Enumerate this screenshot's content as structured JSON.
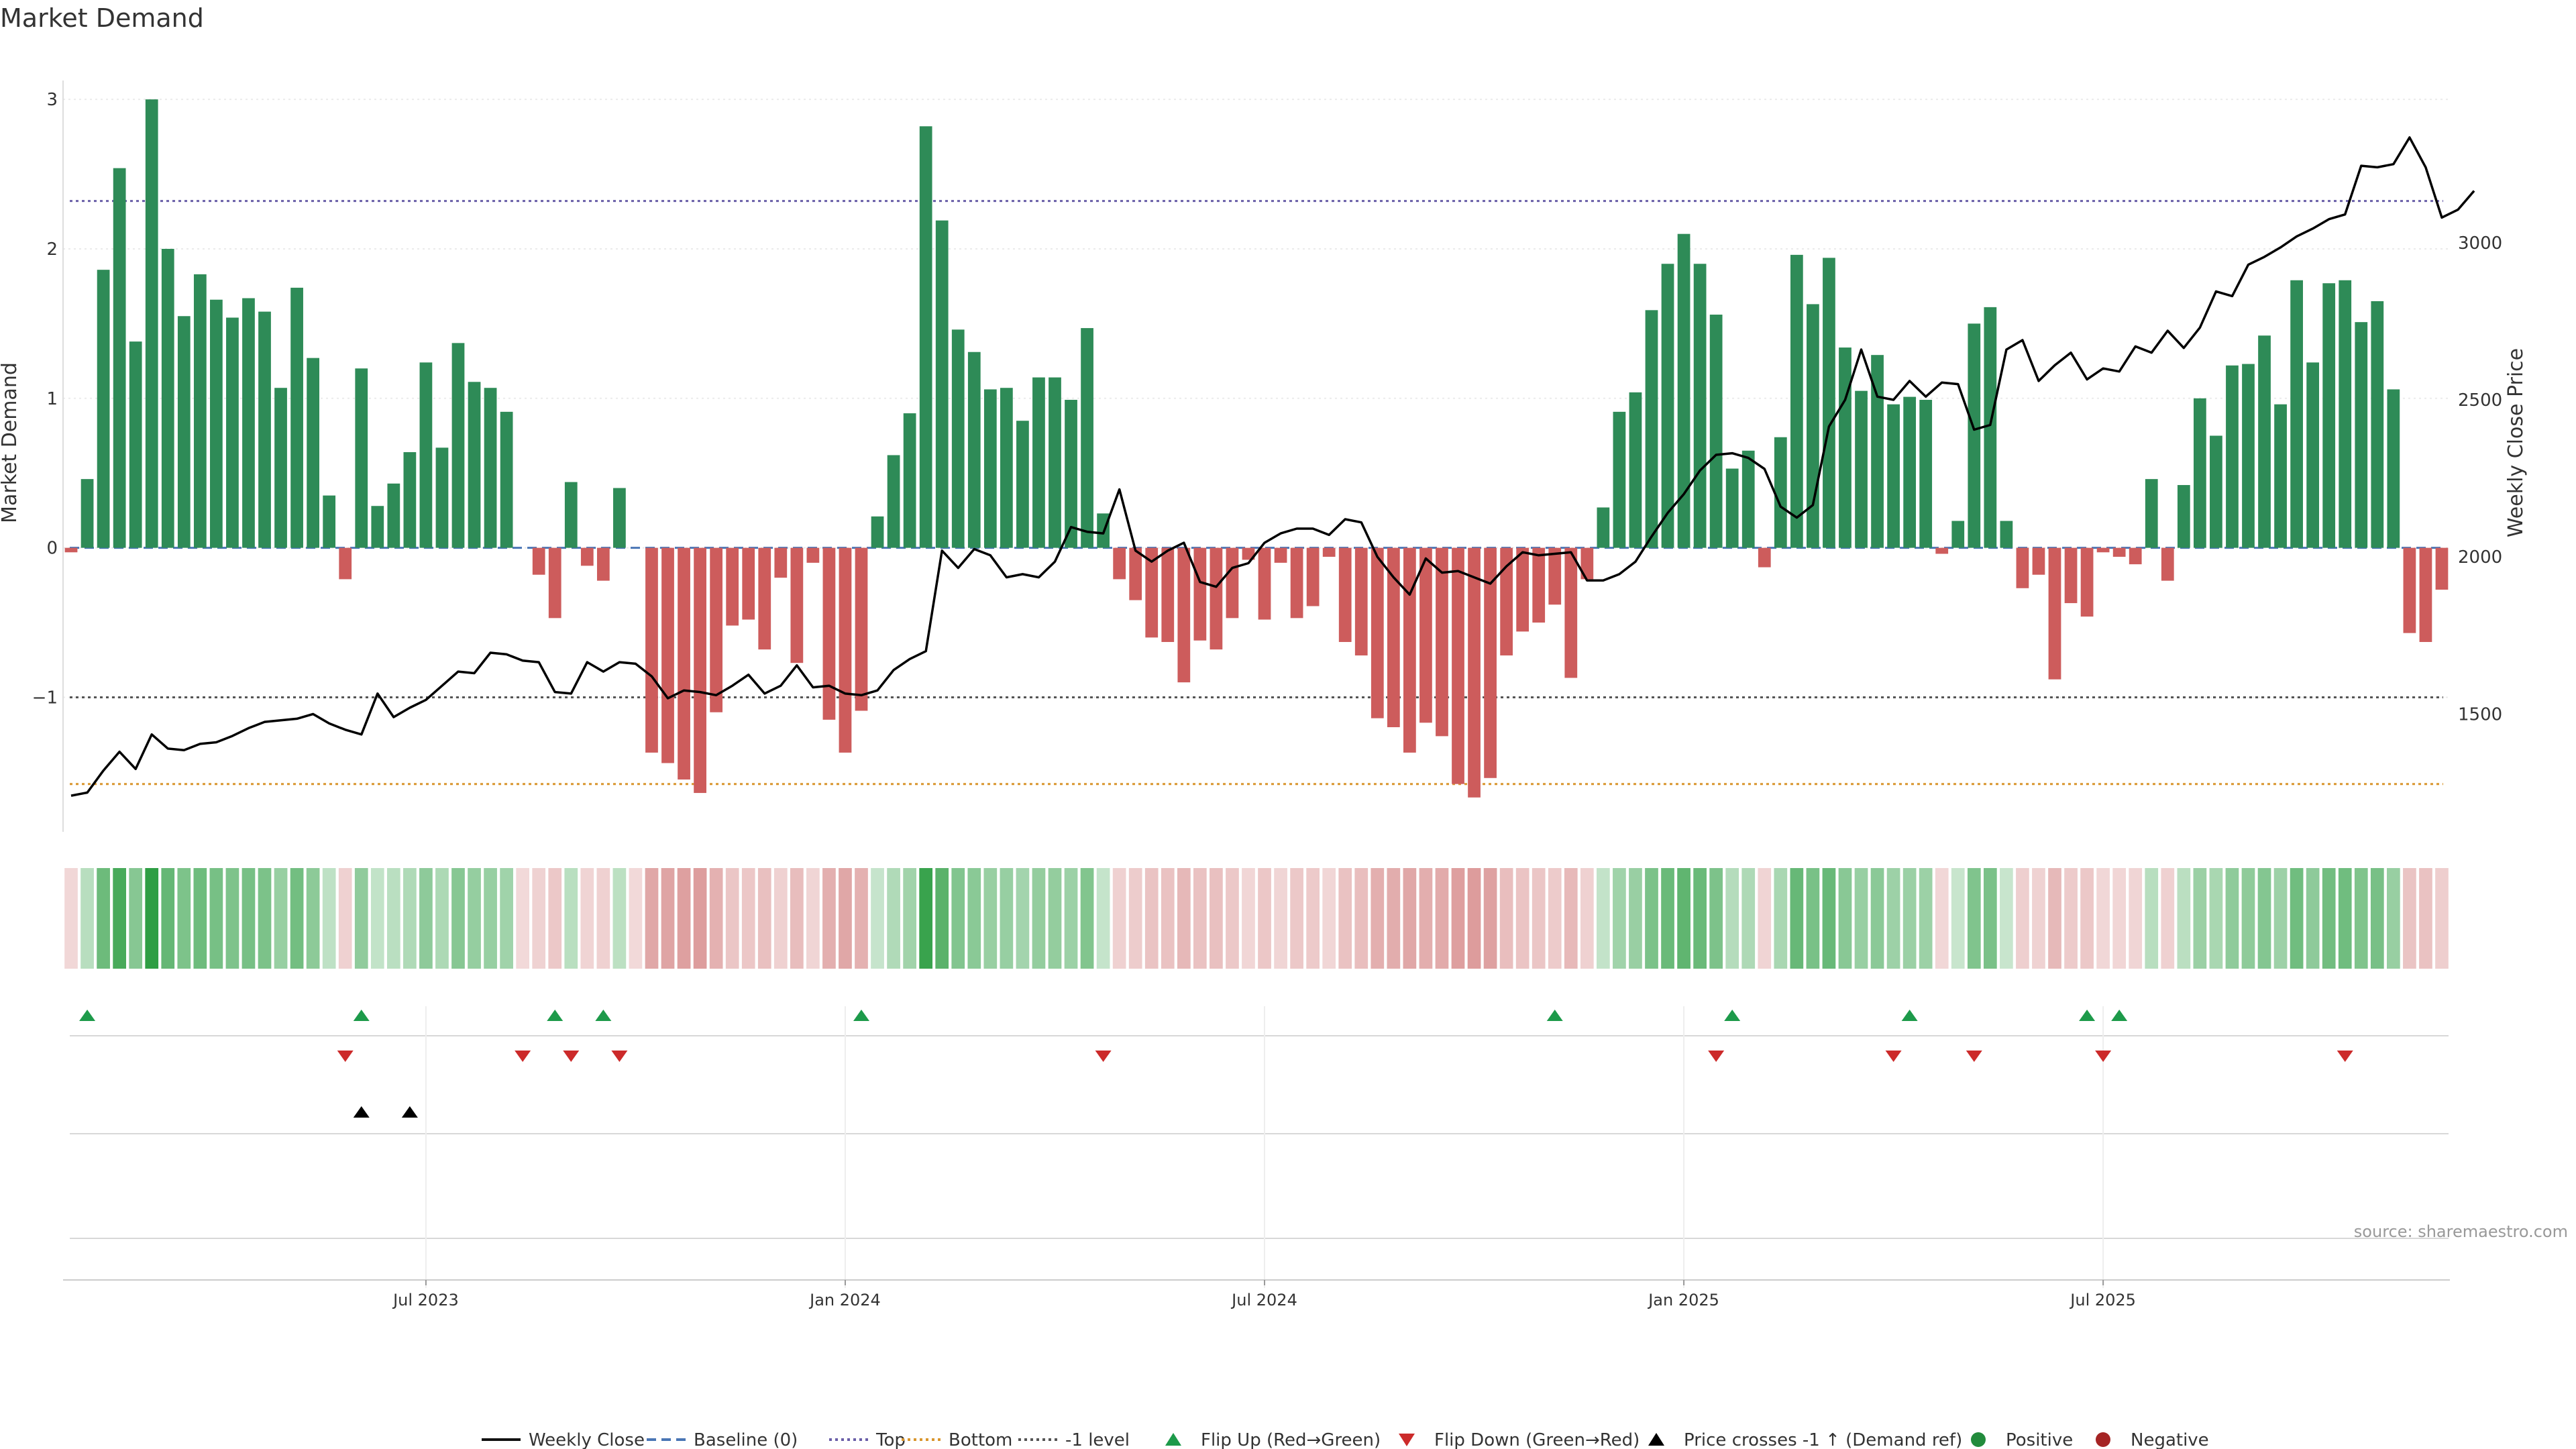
{
  "chart_data": {
    "type": "bar",
    "title": "Market Demand",
    "ylabel": "Market Demand",
    "y2label": "Weekly Close Price",
    "ylim": [
      -1.9,
      3.05
    ],
    "y2lim": [
      1125,
      3480
    ],
    "yticks": [
      {
        "v": 3,
        "label": "3"
      },
      {
        "v": 2,
        "label": "2"
      },
      {
        "v": 1,
        "label": "1"
      },
      {
        "v": 0,
        "label": "0"
      },
      {
        "v": -1,
        "label": "−1"
      }
    ],
    "y2ticks": [
      {
        "v": 3000,
        "label": "3000"
      },
      {
        "v": 2500,
        "label": "2500"
      },
      {
        "v": 2000,
        "label": "2000"
      },
      {
        "v": 1500,
        "label": "1500"
      }
    ],
    "xticks": [
      {
        "index": 22,
        "label": "Jul 2023"
      },
      {
        "index": 48,
        "label": "Jan 2024"
      },
      {
        "index": 74,
        "label": "Jul 2024"
      },
      {
        "index": 100,
        "label": "Jan 2025"
      },
      {
        "index": 126,
        "label": "Jul 2025"
      }
    ],
    "reference_lines": {
      "top": 2.32,
      "minus_one": -1.0,
      "bottom": -1.58
    },
    "demand": [
      -0.03,
      0.46,
      1.86,
      2.54,
      1.38,
      3.0,
      2.0,
      1.55,
      1.83,
      1.66,
      1.54,
      1.67,
      1.58,
      1.07,
      1.74,
      1.27,
      0.35,
      -0.21,
      1.2,
      0.28,
      0.43,
      0.64,
      1.24,
      0.67,
      1.37,
      1.11,
      1.07,
      0.91,
      0,
      -0.18,
      -0.47,
      0.44,
      -0.12,
      -0.22,
      0.4,
      0,
      -1.37,
      -1.44,
      -1.55,
      -1.64,
      -1.1,
      -0.52,
      -0.48,
      -0.68,
      -0.2,
      -0.77,
      -0.1,
      -1.15,
      -1.37,
      -1.09,
      0.21,
      0.62,
      0.9,
      2.82,
      2.19,
      1.46,
      1.31,
      1.06,
      1.07,
      0.85,
      1.14,
      1.14,
      0.99,
      1.47,
      0.23,
      -0.21,
      -0.35,
      -0.6,
      -0.63,
      -0.9,
      -0.62,
      -0.68,
      -0.47,
      -0.08,
      -0.48,
      -0.1,
      -0.47,
      -0.39,
      -0.06,
      -0.63,
      -0.72,
      -1.14,
      -1.2,
      -1.37,
      -1.17,
      -1.26,
      -1.58,
      -1.67,
      -1.54,
      -0.72,
      -0.56,
      -0.5,
      -0.38,
      -0.87,
      -0.21,
      0.27,
      0.91,
      1.04,
      1.59,
      1.9,
      2.1,
      1.9,
      1.56,
      0.53,
      0.65,
      -0.13,
      0.74,
      1.96,
      1.63,
      1.94,
      1.34,
      1.05,
      1.29,
      0.96,
      1.01,
      0.99,
      -0.04,
      0.18,
      1.5,
      1.61,
      0.18,
      -0.27,
      -0.18,
      -0.88,
      -0.37,
      -0.46,
      -0.03,
      -0.06,
      -0.11,
      0.46,
      -0.22,
      0.42,
      1.0,
      0.75,
      1.22,
      1.23,
      1.42,
      0.96,
      1.79,
      1.24,
      1.77,
      1.79,
      1.51,
      1.65,
      1.06,
      -0.57,
      -0.63,
      -0.28
    ],
    "weekly_close": [
      1240,
      1250,
      1320,
      1380,
      1325,
      1435,
      1390,
      1385,
      1405,
      1410,
      1430,
      1455,
      1475,
      1480,
      1485,
      1500,
      1470,
      1450,
      1435,
      1565,
      1490,
      1520,
      1545,
      1590,
      1635,
      1630,
      1695,
      1690,
      1670,
      1665,
      1570,
      1565,
      1665,
      1635,
      1665,
      1660,
      1620,
      1550,
      1575,
      1570,
      1560,
      1590,
      1625,
      1565,
      1590,
      1655,
      1585,
      1590,
      1565,
      1560,
      1575,
      1640,
      1675,
      1700,
      2020,
      1965,
      2025,
      2005,
      1935,
      1945,
      1935,
      1985,
      2095,
      2080,
      2075,
      2215,
      2020,
      1985,
      2020,
      2045,
      1920,
      1905,
      1965,
      1980,
      2045,
      2075,
      2090,
      2090,
      2070,
      2120,
      2110,
      2000,
      1935,
      1880,
      1995,
      1950,
      1955,
      1935,
      1915,
      1970,
      2015,
      2005,
      2010,
      2015,
      1925,
      1925,
      1945,
      1985,
      2065,
      2140,
      2200,
      2275,
      2325,
      2330,
      2315,
      2280,
      2160,
      2125,
      2165,
      2415,
      2500,
      2660,
      2510,
      2500,
      2560,
      2510,
      2555,
      2550,
      2405,
      2420,
      2660,
      2690,
      2560,
      2610,
      2650,
      2565,
      2600,
      2590,
      2670,
      2650,
      2720,
      2665,
      2730,
      2845,
      2830,
      2930,
      2955,
      2985,
      3020,
      3045,
      3075,
      3090,
      3245,
      3240,
      3250,
      3335,
      3240,
      3080,
      3105,
      3165
    ],
    "flip_up": [
      1,
      18,
      30,
      33,
      49,
      92,
      103,
      114,
      125,
      127
    ],
    "flip_down": [
      17,
      28,
      31,
      34,
      64,
      102,
      113,
      118,
      126,
      141
    ],
    "price_cross": [
      18,
      21
    ],
    "legend": [
      {
        "label": "Weekly Close",
        "kind": "line",
        "color": "#111111",
        "dash": ""
      },
      {
        "label": "Baseline (0)",
        "kind": "line",
        "color": "#4a76b5",
        "dash": "14 8"
      },
      {
        "label": "Top",
        "kind": "line",
        "color": "#6a5fa8",
        "dash": "4 5"
      },
      {
        "label": "Bottom",
        "kind": "line",
        "color": "#d9962e",
        "dash": "4 5"
      },
      {
        "label": "-1 level",
        "kind": "line",
        "color": "#555555",
        "dash": "4 5"
      },
      {
        "label": "Flip Up (Red→Green)",
        "kind": "tri-up",
        "color": "#1d9a4a"
      },
      {
        "label": "Flip Down (Green→Red)",
        "kind": "tri-down",
        "color": "#cc2a2a"
      },
      {
        "label": "Price crosses -1 ↑ (Demand ref)",
        "kind": "tri-up",
        "color": "#000000"
      },
      {
        "label": "Positive",
        "kind": "dot",
        "color": "#228b3c"
      },
      {
        "label": "Negative",
        "kind": "dot",
        "color": "#a52424"
      }
    ],
    "source": "source: sharemaestro.com",
    "colors": {
      "positive": "#2e8b57",
      "negative": "#cd5c5c",
      "price": "#000000",
      "flip_up": "#1d9a4a",
      "flip_down": "#cc2a2a"
    }
  }
}
